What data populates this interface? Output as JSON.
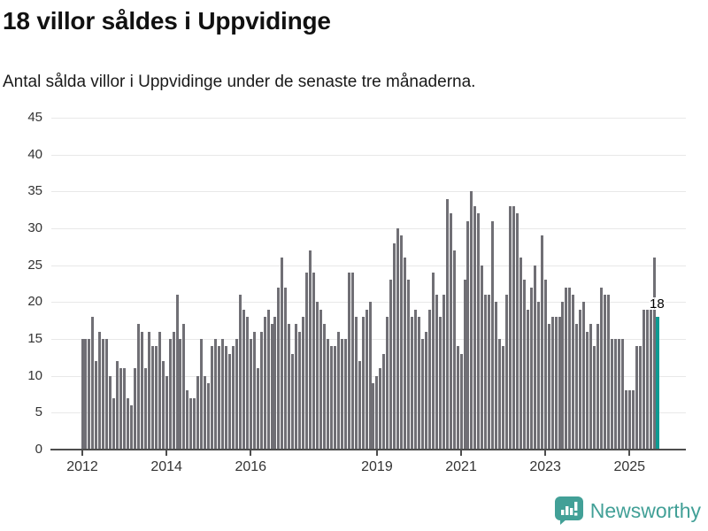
{
  "header": {
    "title": "18 villor såldes i Uppvidinge",
    "subtitle": "Antal sålda villor i Uppvidinge under de senaste tre månaderna."
  },
  "annotation": {
    "label": "18"
  },
  "logo": {
    "text": "Newsworthy"
  },
  "colors": {
    "bar": "#706f75",
    "highlight": "#0d9a92",
    "logo_teal": "#42a097",
    "gridline": "#e8e8e8",
    "axis": "#4d4d4d",
    "tick_label": "#333333"
  },
  "chart_data": {
    "type": "bar",
    "title": "18 villor såldes i Uppvidinge",
    "subtitle": "Antal sålda villor i Uppvidinge under de senaste tre månaderna.",
    "unit": "sålda villor per månad",
    "start_year": 2012,
    "start_month": 1,
    "x_tick_years": [
      2012,
      2014,
      2016,
      2019,
      2021,
      2023,
      2025
    ],
    "y_ticks": [
      0,
      5,
      10,
      15,
      20,
      25,
      30,
      35,
      40,
      45
    ],
    "ylim": [
      0,
      45
    ],
    "grid": true,
    "highlight_index": 164,
    "highlight_value_label": "18",
    "values_by_year": {
      "2012": [
        15,
        15,
        15,
        18,
        12,
        16,
        15,
        15,
        10,
        7,
        12,
        11
      ],
      "2013": [
        11,
        7,
        6,
        11,
        17,
        16,
        11,
        16,
        14,
        14,
        16,
        12
      ],
      "2014": [
        10,
        15,
        16,
        21,
        15,
        17,
        8,
        7,
        7,
        10,
        15,
        10
      ],
      "2015": [
        9,
        14,
        15,
        14,
        15,
        14,
        13,
        14,
        15,
        21,
        19,
        18
      ],
      "2016": [
        15,
        16,
        11,
        16,
        18,
        19,
        17,
        18,
        22,
        26,
        22,
        17
      ],
      "2017": [
        13,
        17,
        16,
        18,
        24,
        27,
        24,
        20,
        19,
        17,
        15,
        14
      ],
      "2018": [
        14,
        16,
        15,
        15,
        24,
        24,
        18,
        12,
        18,
        19,
        20,
        9
      ],
      "2019": [
        10,
        11,
        13,
        18,
        23,
        28,
        30,
        29,
        26,
        23,
        18,
        19
      ],
      "2020": [
        18,
        15,
        16,
        19,
        24,
        21,
        18,
        21,
        34,
        32,
        27,
        14
      ],
      "2021": [
        13,
        23,
        31,
        35,
        33,
        32,
        25,
        21,
        21,
        31,
        20,
        15
      ],
      "2022": [
        14,
        21,
        33,
        33,
        32,
        26,
        23,
        19,
        22,
        25,
        20,
        29
      ],
      "2023": [
        23,
        17,
        18,
        18,
        18,
        20,
        22,
        22,
        21,
        17,
        19,
        20
      ],
      "2024": [
        16,
        17,
        14,
        17,
        22,
        21,
        21,
        15,
        15,
        15,
        15,
        8
      ],
      "2025": [
        8,
        8,
        14,
        14,
        19,
        19,
        19,
        26,
        18
      ]
    }
  }
}
